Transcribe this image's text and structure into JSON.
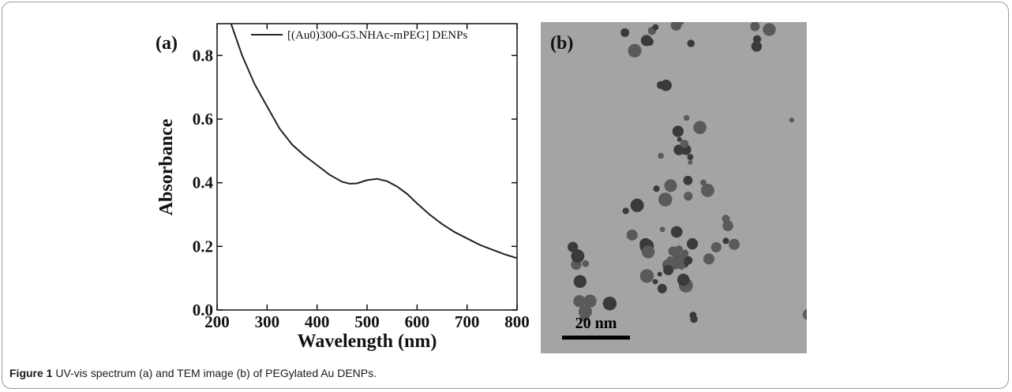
{
  "chart_data": {
    "type": "line",
    "panel_label": "(a)",
    "x_label": "Wavelength (nm)",
    "y_label": "Absorbance",
    "xlim": [
      200,
      800
    ],
    "xticks": [
      200,
      300,
      400,
      500,
      600,
      700,
      800
    ],
    "ylim": [
      0,
      0.9
    ],
    "yticks": [
      {
        "value": 0,
        "label": "0.0"
      },
      0.2,
      0.4,
      0.6,
      0.8
    ],
    "legend": "upper right",
    "x": [
      228,
      250,
      275,
      300,
      325,
      350,
      375,
      400,
      425,
      450,
      465,
      480,
      500,
      520,
      540,
      560,
      580,
      600,
      625,
      650,
      675,
      700,
      725,
      750,
      775,
      800
    ],
    "series": [
      {
        "name": "[(Au0)300-G5.NHAc-mPEG] DENPs",
        "color": "#222222",
        "values": [
          0.9,
          0.8,
          0.71,
          0.64,
          0.57,
          0.52,
          0.485,
          0.455,
          0.425,
          0.403,
          0.397,
          0.398,
          0.408,
          0.412,
          0.405,
          0.388,
          0.365,
          0.335,
          0.3,
          0.27,
          0.245,
          0.225,
          0.205,
          0.19,
          0.175,
          0.163
        ]
      }
    ]
  },
  "tem_image": {
    "panel_label": "(b)",
    "scale_bar": "20 nm"
  },
  "caption": {
    "label": "Figure 1",
    "text": "UV-vis spectrum (a) and TEM image (b) of PEGylated Au DENPs."
  }
}
